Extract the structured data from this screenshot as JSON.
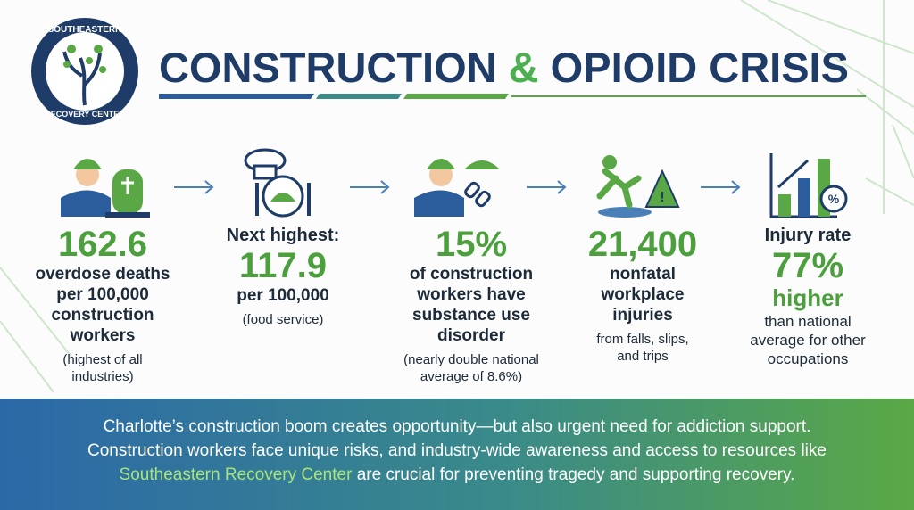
{
  "logo": {
    "top": "SOUTHEASTERN",
    "bottom": "RECOVERY CENTER"
  },
  "header": {
    "title_start": "CONSTRUCTION",
    "title_amp": "&",
    "title_end": "OPIOID CRISIS"
  },
  "stats": [
    {
      "figure": "162.6",
      "text": [
        "overdose deaths",
        "per 100,000",
        "construction",
        "workers"
      ],
      "note": [
        "(highest of all",
        "industries)"
      ]
    },
    {
      "lead": "Next highest:",
      "figure": "117.9",
      "text": [
        "per 100,000"
      ],
      "note": [
        "(food service)"
      ]
    },
    {
      "figure": "15%",
      "text": [
        "of construction",
        "workers have",
        "substance use",
        "disorder"
      ],
      "note": [
        "(nearly double national",
        "average of 8.6%)"
      ]
    },
    {
      "figure": "21,400",
      "text": [
        "nonfatal",
        "workplace",
        "injuries"
      ],
      "note": [
        "from falls, slips,",
        "and trips"
      ]
    },
    {
      "lead": "Injury rate",
      "figure": "77%",
      "after": "higher",
      "note": [
        "than national",
        "average for other",
        "occupations"
      ]
    }
  ],
  "footer": {
    "line1": "Charlotte’s construction boom creates opportunity—but also urgent need for addiction support.",
    "line2": "Construction workers face unique risks, and industry-wide awareness and access to resources like",
    "link": "Southeastern Recovery Center",
    "line3_end": "are crucial for preventing tragedy and supporting recovery."
  }
}
